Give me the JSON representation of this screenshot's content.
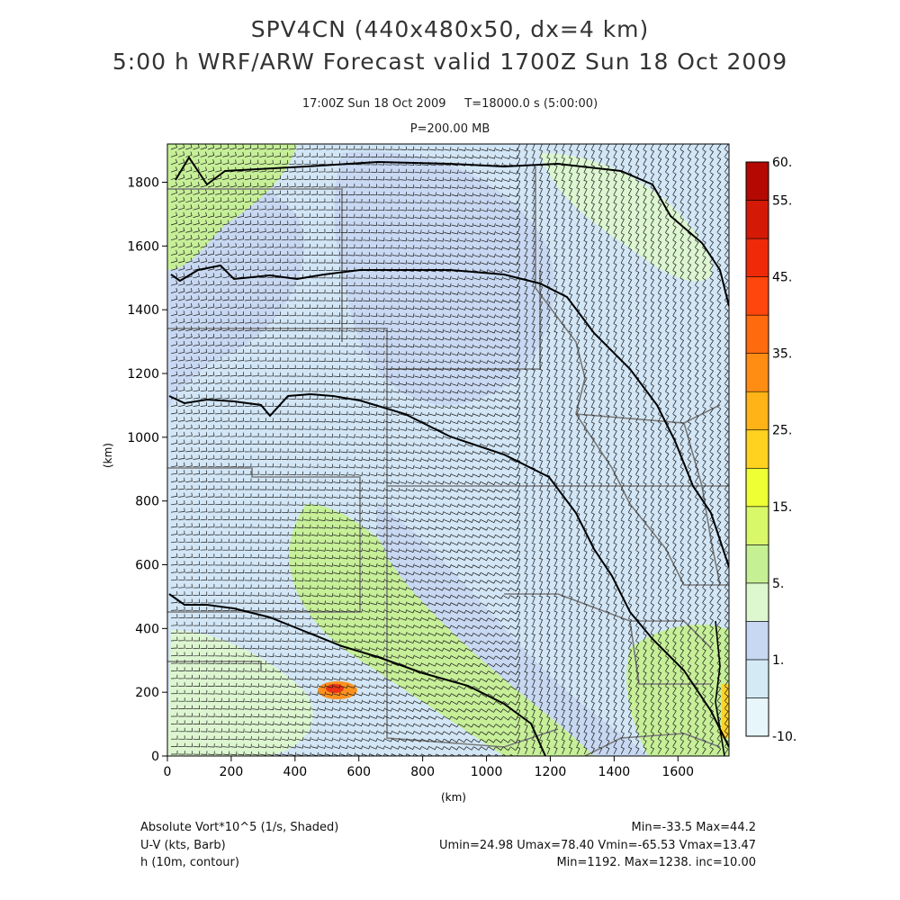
{
  "header": {
    "title_line1": "SPV4CN (440x480x50, dx=4 km)",
    "title_line2": "5:00 h WRF/ARW Forecast valid 1700Z Sun 18 Oct 2009",
    "valid_time": "17:00Z Sun 18 Oct 2009",
    "model_time": "T=18000.0 s (5:00:00)",
    "pressure": "P=200.00 MB"
  },
  "chart_data": {
    "type": "heatmap",
    "xlabel": "(km)",
    "ylabel": "(km)",
    "xlim": [
      0,
      1760
    ],
    "ylim": [
      0,
      1920
    ],
    "x_ticks": [
      0,
      200,
      400,
      600,
      800,
      1000,
      1200,
      1400,
      1600
    ],
    "y_ticks": [
      0,
      200,
      400,
      600,
      800,
      1000,
      1200,
      1400,
      1600,
      1800
    ],
    "colorbar": {
      "levels": [
        -10,
        0,
        1,
        2,
        5,
        10,
        15,
        20,
        25,
        30,
        35,
        40,
        45,
        50,
        55,
        60
      ],
      "labels": [
        "-10.",
        "1.",
        "5.",
        "15.",
        "25.",
        "35.",
        "45.",
        "55.",
        "60."
      ],
      "label_values": [
        -10,
        1,
        5,
        15,
        25,
        35,
        45,
        55,
        60
      ],
      "colors": [
        "#e6f6fb",
        "#d4ebf6",
        "#c8d8f2",
        "#ddf7cf",
        "#c6f094",
        "#d8f86a",
        "#eeff33",
        "#ffd21f",
        "#ffb316",
        "#ff8d14",
        "#ff6a0f",
        "#ff460c",
        "#ee2a08",
        "#d41a06",
        "#b40802"
      ]
    },
    "contours": {
      "field": "h (10m, contour)",
      "min": 1192,
      "max": 1238,
      "interval": 10
    },
    "barbs": {
      "field": "U-V (kts, Barb)",
      "umin": 24.98,
      "umax": 78.4,
      "vmin": -65.53,
      "vmax": 13.47
    },
    "shaded": {
      "field": "Absolute Vort*10^5 (1/s, Shaded)",
      "min": -33.5,
      "max": 44.2
    }
  },
  "footer": {
    "vort_label": "Absolute Vort*10^5 (1/s, Shaded)",
    "vort_stats": "Min=-33.5 Max=44.2",
    "wind_label": "U-V (kts, Barb)",
    "wind_stats": "Umin=24.98 Umax=78.40 Vmin=-65.53 Vmax=13.47",
    "height_label": "h (10m, contour)",
    "height_stats": "Min=1192. Max=1238. inc=10.00"
  }
}
